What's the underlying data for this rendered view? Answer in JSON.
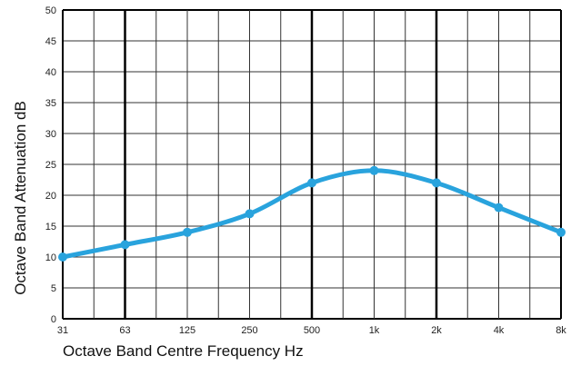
{
  "chart_data": {
    "type": "line",
    "title": "",
    "xlabel": "Octave Band Centre Frequency Hz",
    "ylabel": "Octave Band Attenuation dB",
    "categories": [
      "31",
      "63",
      "125",
      "250",
      "500",
      "1k",
      "2k",
      "4k",
      "8k"
    ],
    "y_ticks": [
      "0",
      "5",
      "10",
      "15",
      "20",
      "25",
      "30",
      "35",
      "40",
      "45",
      "50"
    ],
    "ylim": [
      0,
      50
    ],
    "grid": true,
    "series": [
      {
        "values": [
          10,
          12,
          14,
          17,
          22,
          24,
          22,
          18,
          14
        ]
      }
    ],
    "colors": {
      "line": "#29a3dd",
      "grid_thin": "#333333",
      "grid_bold": "#000000"
    }
  }
}
